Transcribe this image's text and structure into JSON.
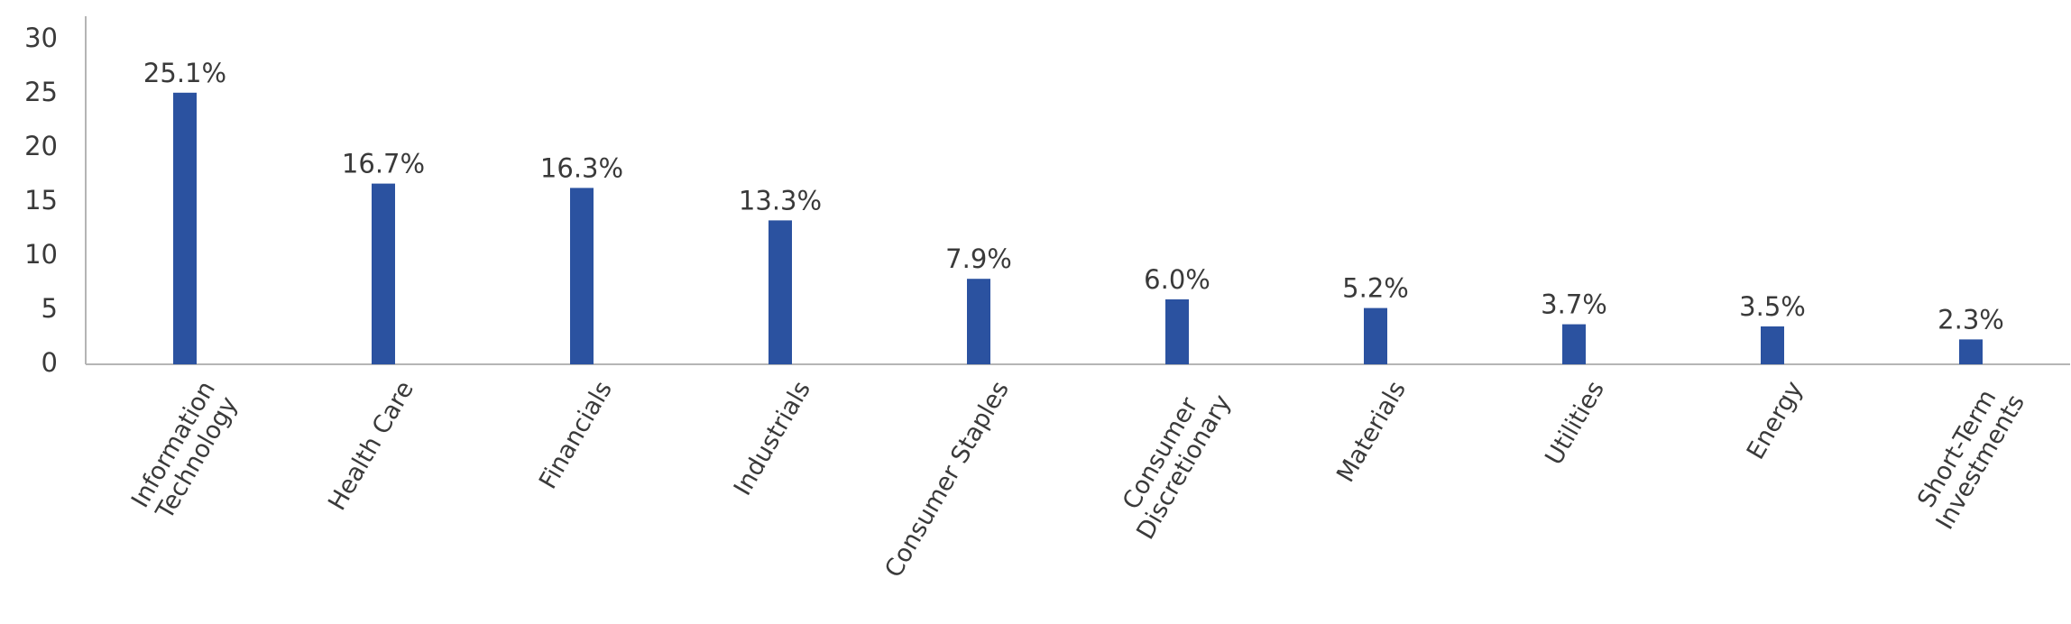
{
  "chart_data": {
    "type": "bar",
    "categories": [
      "Information\nTechnology",
      "Health Care",
      "Financials",
      "Industrials",
      "Consumer Staples",
      "Consumer\nDiscretionary",
      "Materials",
      "Utilities",
      "Energy",
      "Short-Term\nInvestments"
    ],
    "values": [
      25.1,
      16.7,
      16.3,
      13.3,
      7.9,
      6.0,
      5.2,
      3.7,
      3.5,
      2.3
    ],
    "value_labels": [
      "25.1%",
      "16.7%",
      "16.3%",
      "13.3%",
      "7.9%",
      "6.0%",
      "5.2%",
      "3.7%",
      "3.5%",
      "2.3%"
    ],
    "color": "#2b52a0",
    "ylim": [
      0,
      30
    ],
    "yticks": [
      0,
      5,
      10,
      15,
      20,
      25,
      30
    ],
    "grid": false
  }
}
